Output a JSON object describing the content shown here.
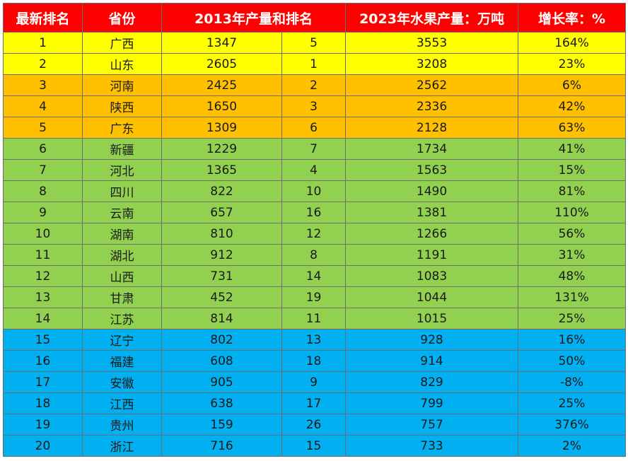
{
  "table": {
    "headers": {
      "rank_new": "最新排名",
      "province": "省份",
      "output_2013_and_rank": "2013年产量和排名",
      "output_2023": "2023年水果产量：万吨",
      "growth": "增长率：%"
    },
    "tier_colors": {
      "header": "#ff0000",
      "yellow": "#ffff00",
      "orange": "#ffc000",
      "green": "#92d050",
      "blue": "#00b0f0"
    },
    "rows": [
      {
        "rank": "1",
        "province": "广西",
        "output_2013": "1347",
        "rank_2013": "5",
        "output_2023": "3553",
        "growth": "164%",
        "tier": "yellow"
      },
      {
        "rank": "2",
        "province": "山东",
        "output_2013": "2605",
        "rank_2013": "1",
        "output_2023": "3208",
        "growth": "23%",
        "tier": "yellow"
      },
      {
        "rank": "3",
        "province": "河南",
        "output_2013": "2425",
        "rank_2013": "2",
        "output_2023": "2562",
        "growth": "6%",
        "tier": "orange"
      },
      {
        "rank": "4",
        "province": "陕西",
        "output_2013": "1650",
        "rank_2013": "3",
        "output_2023": "2336",
        "growth": "42%",
        "tier": "orange"
      },
      {
        "rank": "5",
        "province": "广东",
        "output_2013": "1309",
        "rank_2013": "6",
        "output_2023": "2128",
        "growth": "63%",
        "tier": "orange"
      },
      {
        "rank": "6",
        "province": "新疆",
        "output_2013": "1229",
        "rank_2013": "7",
        "output_2023": "1734",
        "growth": "41%",
        "tier": "green"
      },
      {
        "rank": "7",
        "province": "河北",
        "output_2013": "1365",
        "rank_2013": "4",
        "output_2023": "1563",
        "growth": "15%",
        "tier": "green"
      },
      {
        "rank": "8",
        "province": "四川",
        "output_2013": "822",
        "rank_2013": "10",
        "output_2023": "1490",
        "growth": "81%",
        "tier": "green"
      },
      {
        "rank": "9",
        "province": "云南",
        "output_2013": "657",
        "rank_2013": "16",
        "output_2023": "1381",
        "growth": "110%",
        "tier": "green"
      },
      {
        "rank": "10",
        "province": "湖南",
        "output_2013": "810",
        "rank_2013": "12",
        "output_2023": "1266",
        "growth": "56%",
        "tier": "green"
      },
      {
        "rank": "11",
        "province": "湖北",
        "output_2013": "912",
        "rank_2013": "8",
        "output_2023": "1191",
        "growth": "31%",
        "tier": "green"
      },
      {
        "rank": "12",
        "province": "山西",
        "output_2013": "731",
        "rank_2013": "14",
        "output_2023": "1083",
        "growth": "48%",
        "tier": "green"
      },
      {
        "rank": "13",
        "province": "甘肃",
        "output_2013": "452",
        "rank_2013": "19",
        "output_2023": "1044",
        "growth": "131%",
        "tier": "green"
      },
      {
        "rank": "14",
        "province": "江苏",
        "output_2013": "814",
        "rank_2013": "11",
        "output_2023": "1015",
        "growth": "25%",
        "tier": "green"
      },
      {
        "rank": "15",
        "province": "辽宁",
        "output_2013": "802",
        "rank_2013": "13",
        "output_2023": "928",
        "growth": "16%",
        "tier": "blue"
      },
      {
        "rank": "16",
        "province": "福建",
        "output_2013": "608",
        "rank_2013": "18",
        "output_2023": "914",
        "growth": "50%",
        "tier": "blue"
      },
      {
        "rank": "17",
        "province": "安徽",
        "output_2013": "905",
        "rank_2013": "9",
        "output_2023": "829",
        "growth": "-8%",
        "tier": "blue"
      },
      {
        "rank": "18",
        "province": "江西",
        "output_2013": "638",
        "rank_2013": "17",
        "output_2023": "799",
        "growth": "25%",
        "tier": "blue"
      },
      {
        "rank": "19",
        "province": "贵州",
        "output_2013": "159",
        "rank_2013": "26",
        "output_2023": "757",
        "growth": "376%",
        "tier": "blue"
      },
      {
        "rank": "20",
        "province": "浙江",
        "output_2013": "716",
        "rank_2013": "15",
        "output_2023": "733",
        "growth": "2%",
        "tier": "blue"
      }
    ]
  }
}
